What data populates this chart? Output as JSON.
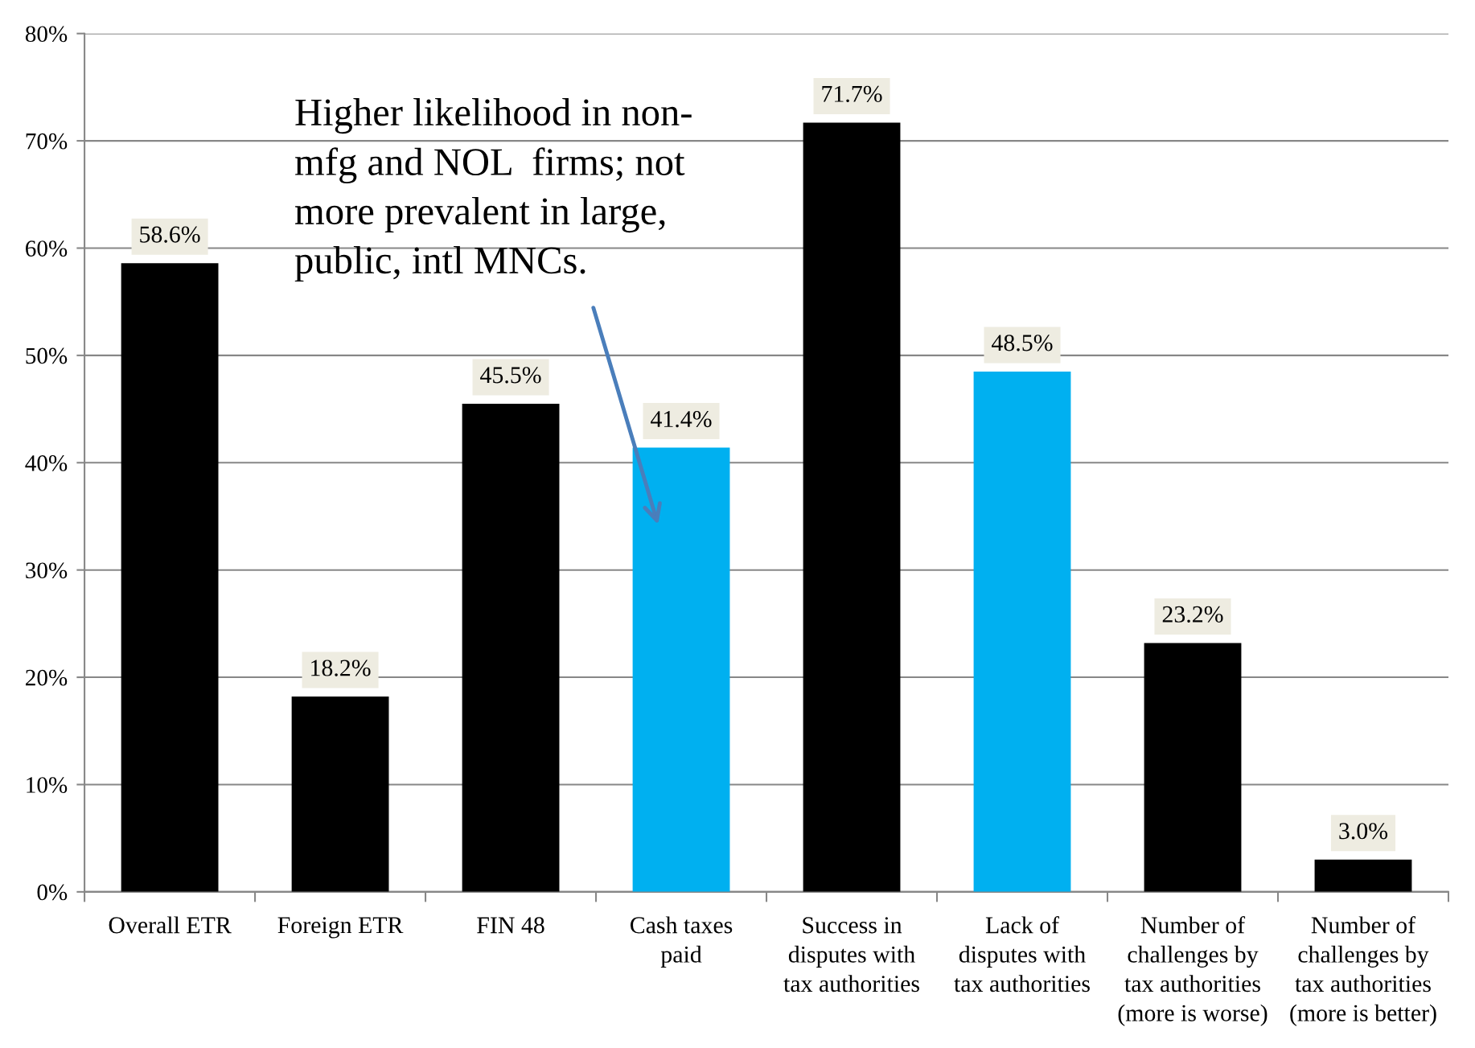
{
  "chart_data": {
    "type": "bar",
    "categories": [
      "Overall ETR",
      "Foreign ETR",
      "FIN 48",
      "Cash taxes\npaid",
      "Success in\ndisputes with\ntax authorities",
      "Lack of\ndisputes with\ntax authorities",
      "Number of\nchallenges by\ntax authorities\n(more is worse)",
      "Number of\nchallenges by\ntax authorities\n(more is better)"
    ],
    "values": [
      58.6,
      18.2,
      45.5,
      41.4,
      71.7,
      48.5,
      23.2,
      3.0
    ],
    "colors": [
      "#000000",
      "#000000",
      "#000000",
      "#00b0f0",
      "#000000",
      "#00b0f0",
      "#000000",
      "#000000"
    ],
    "value_labels": [
      "58.6%",
      "18.2%",
      "45.5%",
      "41.4%",
      "71.7%",
      "48.5%",
      "23.2%",
      "3.0%"
    ],
    "ylim": [
      0,
      80
    ],
    "yticks": [
      {
        "value": 0,
        "label": "0%"
      },
      {
        "value": 10,
        "label": "10%"
      },
      {
        "value": 20,
        "label": "20%"
      },
      {
        "value": 30,
        "label": "30%"
      },
      {
        "value": 40,
        "label": "40%"
      },
      {
        "value": 50,
        "label": "50%"
      },
      {
        "value": 60,
        "label": "60%"
      },
      {
        "value": 70,
        "label": "70%"
      },
      {
        "value": 80,
        "label": "80%"
      }
    ],
    "grid": "y",
    "annotations": [
      "Higher likelihood in non-\nmfg and NOL  firms; not\nmore prevalent in large,\npublic, intl MNCs."
    ]
  }
}
